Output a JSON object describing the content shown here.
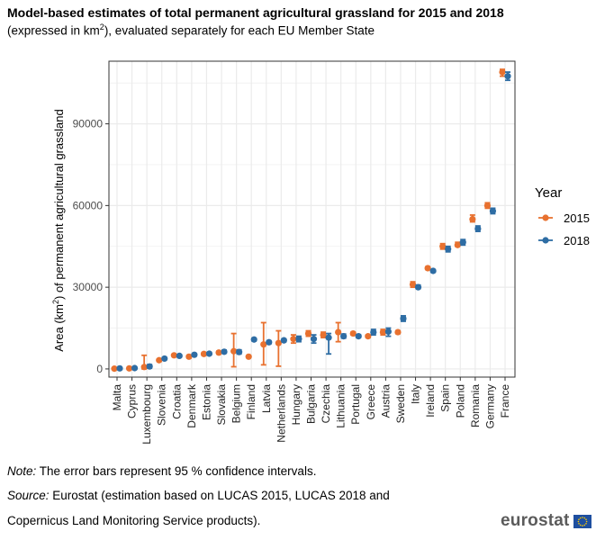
{
  "header": {
    "title": "Model-based estimates of total permanent agricultural grassland for 2015 and 2018",
    "subtitle_pre": "(expressed in km",
    "subtitle_sup": "2",
    "subtitle_post": "), evaluated separately for each EU Member State"
  },
  "notes": {
    "note_label": "Note:",
    "note_text": " The error bars represent 95 % confidence intervals.",
    "source_label": "Source:",
    "source_text": " Eurostat (estimation based on LUCAS 2015, LUCAS 2018 and",
    "source_text2": "Copernicus Land Monitoring Service products)."
  },
  "logo": {
    "text": "eurostat"
  },
  "colors": {
    "y2015": "#E8712F",
    "y2018": "#2E6DA4",
    "grid": "#EBEBEB",
    "axis": "#333333",
    "flag_blue": "#1E4FA0",
    "flag_star": "#FFCC00"
  },
  "chart_data": {
    "type": "scatter",
    "title": "Model-based estimates of total permanent agricultural grassland for 2015 and 2018",
    "xlabel": "",
    "ylabel": "Area (km²) of permanent agricultural grassland",
    "ylabel_pre": "Area (km",
    "ylabel_sup": "2",
    "ylabel_post": ") of permanent agricultural grassland",
    "ylim": [
      -3000,
      113000
    ],
    "yticks": [
      0,
      30000,
      60000,
      90000
    ],
    "ytick_labels": [
      "0",
      "30000",
      "60000",
      "90000"
    ],
    "grid": true,
    "legend": {
      "title": "Year",
      "position": "right",
      "entries": [
        "2015",
        "2018"
      ]
    },
    "categories": [
      "Malta",
      "Cyprus",
      "Luxembourg",
      "Slovenia",
      "Croatia",
      "Denmark",
      "Estonia",
      "Slovakia",
      "Belgium",
      "Finland",
      "Latvia",
      "Netherlands",
      "Hungary",
      "Bulgaria",
      "Czechia",
      "Lithuania",
      "Portugal",
      "Greece",
      "Austria",
      "Sweden",
      "Italy",
      "Ireland",
      "Spain",
      "Poland",
      "Romania",
      "Germany",
      "France"
    ],
    "series": [
      {
        "name": "2015",
        "values": [
          100,
          200,
          700,
          3200,
          5000,
          4500,
          5500,
          6000,
          6500,
          4500,
          9000,
          9500,
          11000,
          13000,
          12500,
          13500,
          13000,
          12000,
          13500,
          13500,
          31000,
          37000,
          45000,
          45500,
          55000,
          60000,
          109000
        ],
        "ci_low": [
          0,
          0,
          0,
          2800,
          4700,
          4000,
          5000,
          5500,
          800,
          4200,
          1500,
          1000,
          9500,
          12000,
          11500,
          10000,
          12500,
          11500,
          12500,
          13000,
          30000,
          36500,
          44000,
          45000,
          54000,
          59000,
          107500
        ],
        "ci_high": [
          400,
          600,
          5000,
          3600,
          5300,
          5000,
          6000,
          6500,
          13000,
          4800,
          17000,
          14000,
          12500,
          14000,
          13500,
          17000,
          13500,
          12500,
          14500,
          14000,
          32000,
          37500,
          46000,
          46500,
          56500,
          61000,
          110000
        ]
      },
      {
        "name": "2018",
        "values": [
          200,
          300,
          900,
          3800,
          4800,
          5200,
          5600,
          6300,
          6200,
          10800,
          9800,
          10500,
          11000,
          11000,
          11500,
          12000,
          12000,
          13500,
          13700,
          18500,
          30000,
          36000,
          44000,
          46500,
          51500,
          58000,
          107500
        ],
        "ci_low": [
          0,
          0,
          300,
          3500,
          4500,
          4800,
          5200,
          5800,
          5500,
          10300,
          9300,
          10000,
          10000,
          9500,
          5500,
          11300,
          11500,
          12500,
          12000,
          17500,
          29500,
          35500,
          43000,
          45500,
          50500,
          57000,
          106000
        ],
        "ci_high": [
          500,
          700,
          1600,
          4200,
          5200,
          5600,
          6000,
          6900,
          7000,
          11300,
          10300,
          11000,
          12000,
          12500,
          13000,
          12800,
          12600,
          14500,
          15000,
          19500,
          30800,
          36500,
          45000,
          47500,
          52500,
          59000,
          109000
        ]
      }
    ]
  }
}
